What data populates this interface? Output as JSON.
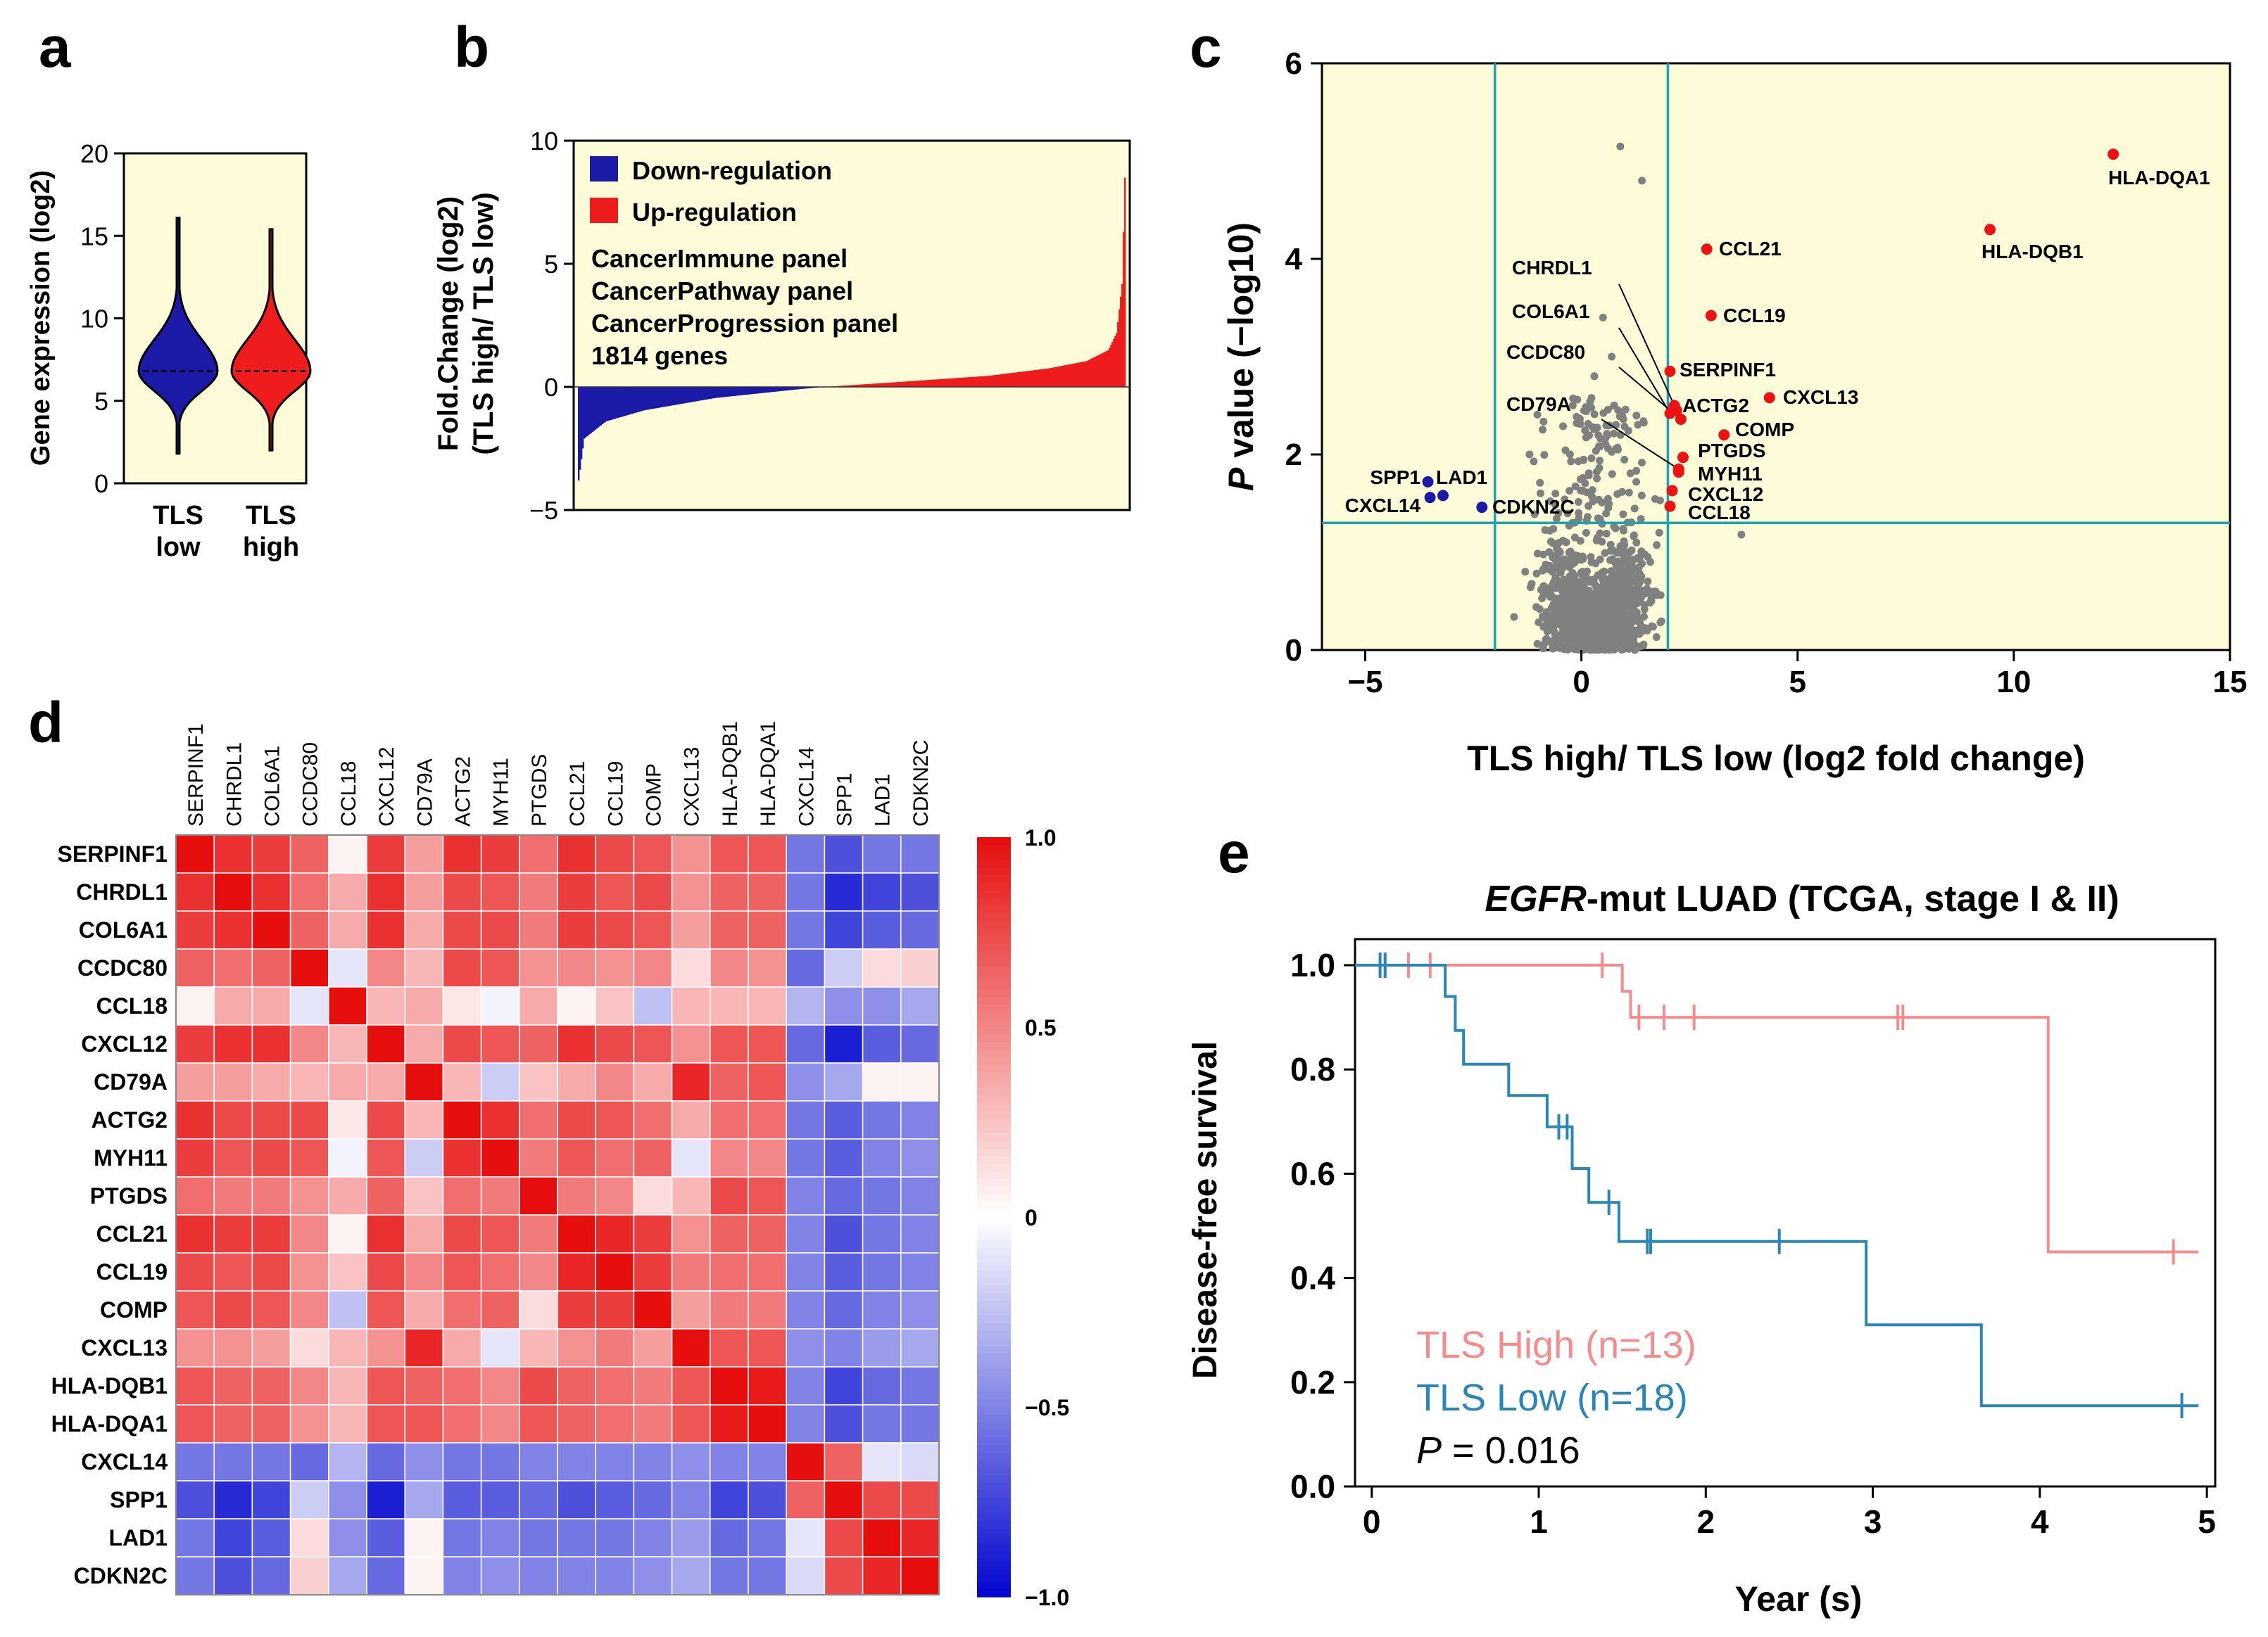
{
  "panel_letters": [
    "a",
    "b",
    "c",
    "d",
    "e"
  ],
  "chart_data": [
    {
      "panel": "a",
      "type": "violin",
      "ylabel": "Gene expression (log2)",
      "ylim": [
        0,
        20
      ],
      "yticks": [
        0,
        5,
        10,
        15,
        20
      ],
      "categories": [
        "TLS low",
        "TLS high"
      ],
      "category_lines": [
        [
          "TLS",
          "low"
        ],
        [
          "TLS",
          "high"
        ]
      ],
      "colors": [
        "#1a1aa6",
        "#ee1c1c"
      ],
      "background": "#fdfbd8",
      "median": [
        6.8,
        6.8
      ],
      "min": [
        1.8,
        2.0
      ],
      "max": [
        16.1,
        15.4
      ]
    },
    {
      "panel": "b",
      "type": "bar",
      "ylabel_lines": [
        "Fold.Change (log2)",
        "(TLS high/ TLS low)"
      ],
      "ylim": [
        -5,
        10
      ],
      "yticks": [
        -5,
        0,
        5,
        10
      ],
      "n_genes": 1814,
      "curve": [
        [
          0,
          -3.8
        ],
        [
          0.01,
          -2.1
        ],
        [
          0.05,
          -1.4
        ],
        [
          0.12,
          -0.95
        ],
        [
          0.25,
          -0.45
        ],
        [
          0.4,
          -0.1
        ],
        [
          0.45,
          0.0
        ],
        [
          0.6,
          0.22
        ],
        [
          0.75,
          0.45
        ],
        [
          0.86,
          0.75
        ],
        [
          0.93,
          1.05
        ],
        [
          0.97,
          1.5
        ],
        [
          0.985,
          2.2
        ],
        [
          0.995,
          4.2
        ],
        [
          1.0,
          8.5
        ]
      ],
      "legend": [
        {
          "label": "Down-regulation",
          "color": "#1a1aa6"
        },
        {
          "label": "Up-regulation",
          "color": "#ee1c1c"
        }
      ],
      "notes": [
        "CancerImmune panel",
        "CancerPathway panel",
        "CancerProgression panel",
        "1814 genes"
      ],
      "background": "#fdfbd8"
    },
    {
      "panel": "c",
      "type": "scatter",
      "xlabel": "TLS high/ TLS low (log2 fold change)",
      "ylabel_italic": "P",
      "ylabel_rest": " value (−log10)",
      "xlim": [
        -6,
        15
      ],
      "ylim": [
        0,
        6
      ],
      "xticks": [
        -5,
        0,
        5,
        10,
        15
      ],
      "yticks": [
        0,
        2,
        4,
        6
      ],
      "thresholds": {
        "x": [
          -2,
          2
        ],
        "y": 1.3
      },
      "background": "#fdfbd8",
      "line_color": "#1aa3b0",
      "labeled_points": [
        {
          "gene": "HLA-DQA1",
          "x": 12.3,
          "y": 5.07,
          "color": "red"
        },
        {
          "gene": "HLA-DQB1",
          "x": 9.45,
          "y": 4.3,
          "color": "red"
        },
        {
          "gene": "CCL21",
          "x": 2.9,
          "y": 4.1,
          "color": "red"
        },
        {
          "gene": "CCL19",
          "x": 3.0,
          "y": 3.42,
          "color": "red"
        },
        {
          "gene": "SERPINF1",
          "x": 2.05,
          "y": 2.85,
          "color": "red"
        },
        {
          "gene": "CXCL13",
          "x": 4.35,
          "y": 2.58,
          "color": "red"
        },
        {
          "gene": "ACTG2",
          "x": 2.2,
          "y": 2.45,
          "color": "red"
        },
        {
          "gene": "COMP",
          "x": 3.3,
          "y": 2.2,
          "color": "red"
        },
        {
          "gene": "PTGDS",
          "x": 2.35,
          "y": 1.97,
          "color": "red"
        },
        {
          "gene": "MYH11",
          "x": 2.25,
          "y": 1.82,
          "color": "red"
        },
        {
          "gene": "CXCL12",
          "x": 2.1,
          "y": 1.63,
          "color": "red"
        },
        {
          "gene": "CCL18",
          "x": 2.05,
          "y": 1.47,
          "color": "red"
        },
        {
          "gene": "CHRDL1",
          "x": 2.15,
          "y": 2.5,
          "color": "red"
        },
        {
          "gene": "COL6A1",
          "x": 2.05,
          "y": 2.42,
          "color": "red"
        },
        {
          "gene": "CCDC80",
          "x": 2.3,
          "y": 2.36,
          "color": "red"
        },
        {
          "gene": "CD79A",
          "x": 2.25,
          "y": 1.85,
          "color": "red"
        },
        {
          "gene": "SPP1",
          "x": -3.55,
          "y": 1.72,
          "color": "blue"
        },
        {
          "gene": "LAD1",
          "x": -3.2,
          "y": 1.58,
          "color": "blue"
        },
        {
          "gene": "CXCL14",
          "x": -3.5,
          "y": 1.56,
          "color": "blue"
        },
        {
          "gene": "CDKN2C",
          "x": -2.3,
          "y": 1.46,
          "color": "blue"
        }
      ],
      "gray_outliers": [
        [
          0.9,
          5.15
        ],
        [
          1.4,
          4.8
        ],
        [
          0.7,
          3.0
        ],
        [
          0.5,
          3.4
        ],
        [
          -0.2,
          2.5
        ],
        [
          1.8,
          1.2
        ],
        [
          -0.6,
          1.6
        ],
        [
          3.7,
          1.18
        ],
        [
          -1.2,
          2.0
        ],
        [
          0.3,
          2.8
        ]
      ],
      "n_gray": 1800
    },
    {
      "panel": "d",
      "type": "heatmap",
      "genes": [
        "SERPINF1",
        "CHRDL1",
        "COL6A1",
        "CCDC80",
        "CCL18",
        "CXCL12",
        "CD79A",
        "ACTG2",
        "MYH11",
        "PTGDS",
        "CCL21",
        "CCL19",
        "COMP",
        "CXCL13",
        "HLA-DQB1",
        "HLA-DQA1",
        "CXCL14",
        "SPP1",
        "LAD1",
        "CDKN2C"
      ],
      "matrix": [
        [
          1,
          0.85,
          0.8,
          0.65,
          0.05,
          0.8,
          0.4,
          0.85,
          0.8,
          0.6,
          0.85,
          0.75,
          0.7,
          0.45,
          0.7,
          0.7,
          -0.55,
          -0.7,
          -0.55,
          -0.55
        ],
        [
          0.85,
          1,
          0.85,
          0.6,
          0.35,
          0.85,
          0.4,
          0.75,
          0.7,
          0.55,
          0.8,
          0.7,
          0.75,
          0.45,
          0.65,
          0.65,
          -0.55,
          -0.85,
          -0.75,
          -0.7
        ],
        [
          0.8,
          0.85,
          1,
          0.65,
          0.35,
          0.85,
          0.35,
          0.75,
          0.75,
          0.55,
          0.8,
          0.75,
          0.7,
          0.4,
          0.65,
          0.65,
          -0.55,
          -0.75,
          -0.65,
          -0.6
        ],
        [
          0.65,
          0.6,
          0.65,
          1,
          -0.1,
          0.5,
          0.3,
          0.75,
          0.7,
          0.45,
          0.5,
          0.45,
          0.5,
          0.15,
          0.5,
          0.45,
          -0.6,
          -0.2,
          0.15,
          0.2
        ],
        [
          0.05,
          0.35,
          0.35,
          -0.1,
          1,
          0.3,
          0.35,
          0.1,
          -0.05,
          0.35,
          0.05,
          0.25,
          -0.25,
          0.3,
          0.3,
          0.3,
          -0.3,
          -0.45,
          -0.45,
          -0.35
        ],
        [
          0.8,
          0.85,
          0.85,
          0.5,
          0.3,
          1,
          0.35,
          0.75,
          0.7,
          0.65,
          0.85,
          0.75,
          0.7,
          0.45,
          0.7,
          0.7,
          -0.6,
          -0.9,
          -0.65,
          -0.6
        ],
        [
          0.4,
          0.4,
          0.35,
          0.3,
          0.35,
          0.35,
          1,
          0.3,
          -0.2,
          0.25,
          0.35,
          0.5,
          0.35,
          0.9,
          0.65,
          0.7,
          -0.45,
          -0.35,
          0.05,
          0.05
        ],
        [
          0.85,
          0.75,
          0.75,
          0.75,
          0.1,
          0.75,
          0.3,
          1,
          0.85,
          0.6,
          0.75,
          0.7,
          0.6,
          0.35,
          0.6,
          0.6,
          -0.55,
          -0.65,
          -0.55,
          -0.5
        ],
        [
          0.8,
          0.7,
          0.75,
          0.7,
          -0.05,
          0.7,
          -0.2,
          0.85,
          1,
          0.55,
          0.7,
          0.6,
          0.65,
          -0.1,
          0.5,
          0.5,
          -0.55,
          -0.65,
          -0.5,
          -0.45
        ],
        [
          0.6,
          0.55,
          0.55,
          0.45,
          0.35,
          0.65,
          0.25,
          0.6,
          0.55,
          1,
          0.55,
          0.5,
          0.15,
          0.3,
          0.75,
          0.7,
          -0.5,
          -0.6,
          -0.55,
          -0.5
        ],
        [
          0.85,
          0.8,
          0.8,
          0.5,
          0.05,
          0.85,
          0.35,
          0.75,
          0.7,
          0.55,
          1,
          0.9,
          0.8,
          0.45,
          0.65,
          0.65,
          -0.5,
          -0.7,
          -0.55,
          -0.5
        ],
        [
          0.75,
          0.7,
          0.75,
          0.45,
          0.25,
          0.75,
          0.5,
          0.7,
          0.6,
          0.5,
          0.9,
          1,
          0.8,
          0.55,
          0.6,
          0.6,
          -0.5,
          -0.65,
          -0.55,
          -0.5
        ],
        [
          0.7,
          0.75,
          0.7,
          0.5,
          -0.25,
          0.7,
          0.35,
          0.6,
          0.65,
          0.15,
          0.8,
          0.8,
          1,
          0.4,
          0.55,
          0.55,
          -0.5,
          -0.6,
          -0.5,
          -0.45
        ],
        [
          0.45,
          0.45,
          0.4,
          0.15,
          0.3,
          0.45,
          0.9,
          0.35,
          -0.1,
          0.3,
          0.45,
          0.55,
          0.4,
          1,
          0.7,
          0.7,
          -0.45,
          -0.5,
          -0.4,
          -0.35
        ],
        [
          0.7,
          0.65,
          0.65,
          0.5,
          0.3,
          0.7,
          0.65,
          0.6,
          0.5,
          0.75,
          0.65,
          0.6,
          0.55,
          0.7,
          1,
          0.95,
          -0.5,
          -0.75,
          -0.6,
          -0.55
        ],
        [
          0.7,
          0.65,
          0.65,
          0.45,
          0.3,
          0.7,
          0.7,
          0.6,
          0.5,
          0.7,
          0.65,
          0.6,
          0.55,
          0.7,
          0.95,
          1,
          -0.5,
          -0.7,
          -0.55,
          -0.55
        ],
        [
          -0.55,
          -0.55,
          -0.55,
          -0.6,
          -0.3,
          -0.6,
          -0.45,
          -0.55,
          -0.55,
          -0.5,
          -0.5,
          -0.5,
          -0.5,
          -0.45,
          -0.5,
          -0.5,
          1,
          0.65,
          -0.1,
          -0.15
        ],
        [
          -0.7,
          -0.85,
          -0.75,
          -0.2,
          -0.45,
          -0.9,
          -0.35,
          -0.65,
          -0.65,
          -0.6,
          -0.7,
          -0.65,
          -0.6,
          -0.5,
          -0.75,
          -0.7,
          0.65,
          1,
          0.75,
          0.75
        ],
        [
          -0.55,
          -0.75,
          -0.65,
          0.15,
          -0.45,
          -0.65,
          0.05,
          -0.55,
          -0.5,
          -0.55,
          -0.55,
          -0.55,
          -0.5,
          -0.4,
          -0.6,
          -0.55,
          -0.1,
          0.75,
          1,
          0.9
        ],
        [
          -0.55,
          -0.7,
          -0.6,
          0.2,
          -0.35,
          -0.6,
          0.05,
          -0.5,
          -0.45,
          -0.5,
          -0.5,
          -0.5,
          -0.45,
          -0.35,
          -0.55,
          -0.55,
          -0.15,
          0.75,
          0.9,
          1
        ]
      ],
      "colorbar_ticks": [
        {
          "v": 1.0,
          "label": "1.0"
        },
        {
          "v": 0.5,
          "label": "0.5"
        },
        {
          "v": 0,
          "label": "0"
        },
        {
          "v": -0.5,
          "label": "−0.5"
        },
        {
          "v": -1.0,
          "label": "−1.0"
        }
      ],
      "vmin": -1,
      "vmax": 1
    },
    {
      "panel": "e",
      "type": "line",
      "title_italic": "EGFR",
      "title_rest": "-mut LUAD (TCGA, stage I & II)",
      "xlabel": "Year (s)",
      "ylabel": "Disease-free survival",
      "xlim": [
        -0.1,
        5.05
      ],
      "ylim": [
        0,
        1.05
      ],
      "xticks": [
        0,
        1,
        2,
        3,
        4,
        5
      ],
      "yticks": [
        0.0,
        0.2,
        0.4,
        0.6,
        0.8,
        1.0
      ],
      "ytick_labels": [
        "0.0",
        "0.2",
        "0.4",
        "0.6",
        "0.8",
        "1.0"
      ],
      "series": [
        {
          "name": "TLS High (n=13)",
          "color": "#f48c8c",
          "steps": [
            [
              -0.1,
              1.0
            ],
            [
              1.5,
              1.0
            ],
            [
              1.5,
              0.95
            ],
            [
              1.55,
              0.95
            ],
            [
              1.55,
              0.9
            ],
            [
              4.05,
              0.9
            ],
            [
              4.05,
              0.45
            ],
            [
              4.95,
              0.45
            ]
          ],
          "censors": [
            [
              0.05,
              1.0
            ],
            [
              0.08,
              1.0
            ],
            [
              0.22,
              1.0
            ],
            [
              0.35,
              1.0
            ],
            [
              1.38,
              1.0
            ],
            [
              1.6,
              0.9
            ],
            [
              1.75,
              0.9
            ],
            [
              1.93,
              0.9
            ],
            [
              3.15,
              0.9
            ],
            [
              3.18,
              0.9
            ],
            [
              4.8,
              0.45
            ]
          ]
        },
        {
          "name": "TLS Low (n=18)",
          "color": "#2a85b8",
          "steps": [
            [
              -0.1,
              1.0
            ],
            [
              0.44,
              1.0
            ],
            [
              0.44,
              0.94
            ],
            [
              0.5,
              0.94
            ],
            [
              0.5,
              0.875
            ],
            [
              0.55,
              0.875
            ],
            [
              0.55,
              0.81
            ],
            [
              0.82,
              0.81
            ],
            [
              0.82,
              0.75
            ],
            [
              1.05,
              0.75
            ],
            [
              1.05,
              0.69
            ],
            [
              1.2,
              0.69
            ],
            [
              1.2,
              0.61
            ],
            [
              1.3,
              0.61
            ],
            [
              1.3,
              0.545
            ],
            [
              1.48,
              0.545
            ],
            [
              1.48,
              0.47
            ],
            [
              2.96,
              0.47
            ],
            [
              2.96,
              0.31
            ],
            [
              3.65,
              0.31
            ],
            [
              3.65,
              0.155
            ],
            [
              4.95,
              0.155
            ]
          ],
          "censors": [
            [
              0.05,
              1.0
            ],
            [
              0.08,
              1.0
            ],
            [
              1.12,
              0.69
            ],
            [
              1.17,
              0.69
            ],
            [
              1.42,
              0.545
            ],
            [
              1.65,
              0.47
            ],
            [
              1.67,
              0.47
            ],
            [
              2.44,
              0.47
            ],
            [
              4.85,
              0.155
            ]
          ]
        }
      ],
      "pvalue_italic": "P",
      "pvalue_rest": " = 0.016"
    }
  ]
}
